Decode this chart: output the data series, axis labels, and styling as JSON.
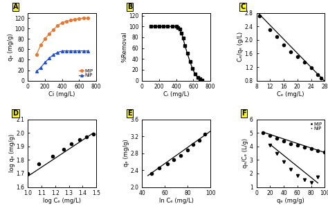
{
  "panel_A": {
    "xlabel": "Ci (mg/L)",
    "ylabel": "qₑ (mg/g)",
    "MIP_x": [
      100,
      150,
      200,
      250,
      300,
      350,
      400,
      450,
      500,
      550,
      600,
      650,
      700
    ],
    "MIP_y": [
      50,
      68,
      80,
      90,
      98,
      106,
      111,
      114,
      116,
      118,
      119,
      120,
      120
    ],
    "NIP_x": [
      100,
      150,
      200,
      250,
      300,
      350,
      400,
      450,
      500,
      550,
      600,
      650,
      700
    ],
    "NIP_y": [
      18,
      25,
      35,
      43,
      50,
      54,
      57,
      57,
      57,
      57,
      57,
      57,
      57
    ],
    "xlim": [
      0,
      800
    ],
    "ylim": [
      0,
      130
    ],
    "xticks": [
      0,
      200,
      400,
      600,
      800
    ],
    "yticks": [
      0,
      20,
      40,
      60,
      80,
      100,
      120
    ],
    "MIP_color": "#E87830",
    "NIP_color": "#2050D0"
  },
  "panel_B": {
    "xlabel": "Cᵢ (mg/L)",
    "ylabel": "%Removal",
    "x": [
      100,
      150,
      200,
      250,
      300,
      350,
      400,
      420,
      440,
      460,
      480,
      500,
      530,
      560,
      590,
      620,
      650,
      680,
      700
    ],
    "y": [
      100,
      100,
      100,
      100,
      100,
      100,
      100,
      98,
      95,
      88,
      78,
      65,
      50,
      35,
      22,
      12,
      6,
      3,
      1
    ],
    "xlim": [
      0,
      800
    ],
    "ylim": [
      0,
      125
    ],
    "xticks": [
      0,
      200,
      400,
      600,
      800
    ],
    "yticks": [
      0,
      20,
      40,
      60,
      80,
      100,
      120
    ]
  },
  "panel_C": {
    "xlabel": "Cₑ (mg/L)",
    "ylabel": "Cₑ/qₑ (g/L)",
    "x": [
      9,
      12,
      14,
      16,
      18,
      20,
      22,
      24,
      26,
      27
    ],
    "y": [
      2.72,
      2.3,
      2.1,
      1.85,
      1.65,
      1.5,
      1.35,
      1.18,
      0.98,
      0.88
    ],
    "fit_x": [
      8,
      28
    ],
    "fit_y": [
      2.85,
      0.78
    ],
    "xlim": [
      8,
      28
    ],
    "ylim": [
      0.8,
      2.8
    ],
    "xticks": [
      8,
      12,
      16,
      20,
      24,
      28
    ],
    "yticks": [
      0.8,
      1.2,
      1.6,
      2.0,
      2.4,
      2.8
    ]
  },
  "panel_D": {
    "xlabel": "log Cₑ (mg/L)",
    "ylabel": "log qₑ (mg/g)",
    "x": [
      1.0,
      1.08,
      1.18,
      1.26,
      1.32,
      1.38,
      1.43,
      1.48
    ],
    "y": [
      1.7,
      1.77,
      1.83,
      1.88,
      1.92,
      1.95,
      1.97,
      1.99
    ],
    "fit_x": [
      1.0,
      1.48
    ],
    "fit_y": [
      1.68,
      2.0
    ],
    "xlim": [
      1.0,
      1.5
    ],
    "ylim": [
      1.6,
      2.1
    ],
    "xticks": [
      1.0,
      1.1,
      1.2,
      1.3,
      1.4,
      1.5
    ],
    "yticks": [
      1.6,
      1.7,
      1.8,
      1.9,
      2.0,
      2.1
    ]
  },
  "panel_E": {
    "xlabel": "ln Cₑ (mg/L)",
    "ylabel": "qₑ (mg/g)",
    "x": [
      48,
      55,
      62,
      68,
      74,
      80,
      85,
      90,
      95
    ],
    "y": [
      2.32,
      2.45,
      2.55,
      2.65,
      2.75,
      2.88,
      3.0,
      3.1,
      3.25
    ],
    "fit_x": [
      45,
      100
    ],
    "fit_y": [
      2.27,
      3.32
    ],
    "xlim": [
      40,
      100
    ],
    "ylim": [
      2.0,
      3.6
    ],
    "xticks": [
      40,
      60,
      80,
      100
    ],
    "yticks": [
      2.0,
      2.4,
      2.8,
      3.2,
      3.6
    ]
  },
  "panel_F": {
    "xlabel": "qₑ (mg/g)",
    "ylabel": "qₑ/Cₑ (L/g)",
    "MIP_x": [
      10,
      20,
      30,
      40,
      50,
      60,
      70,
      80,
      90,
      100
    ],
    "MIP_y": [
      5.0,
      4.8,
      4.6,
      4.4,
      4.2,
      4.1,
      3.95,
      3.82,
      3.7,
      3.6
    ],
    "NIP_x": [
      20,
      30,
      40,
      50,
      60,
      70,
      80,
      90
    ],
    "NIP_y": [
      4.1,
      3.5,
      2.85,
      2.3,
      1.85,
      1.55,
      1.35,
      1.75
    ],
    "MIP_fit_x": [
      10,
      100
    ],
    "MIP_fit_y": [
      5.05,
      3.55
    ],
    "NIP_fit_x": [
      20,
      90
    ],
    "NIP_fit_y": [
      4.15,
      1.3
    ],
    "xlim": [
      0,
      100
    ],
    "ylim": [
      1,
      6
    ],
    "xticks": [
      0,
      20,
      40,
      60,
      80,
      100
    ],
    "yticks": [
      1,
      2,
      3,
      4,
      5,
      6
    ]
  }
}
